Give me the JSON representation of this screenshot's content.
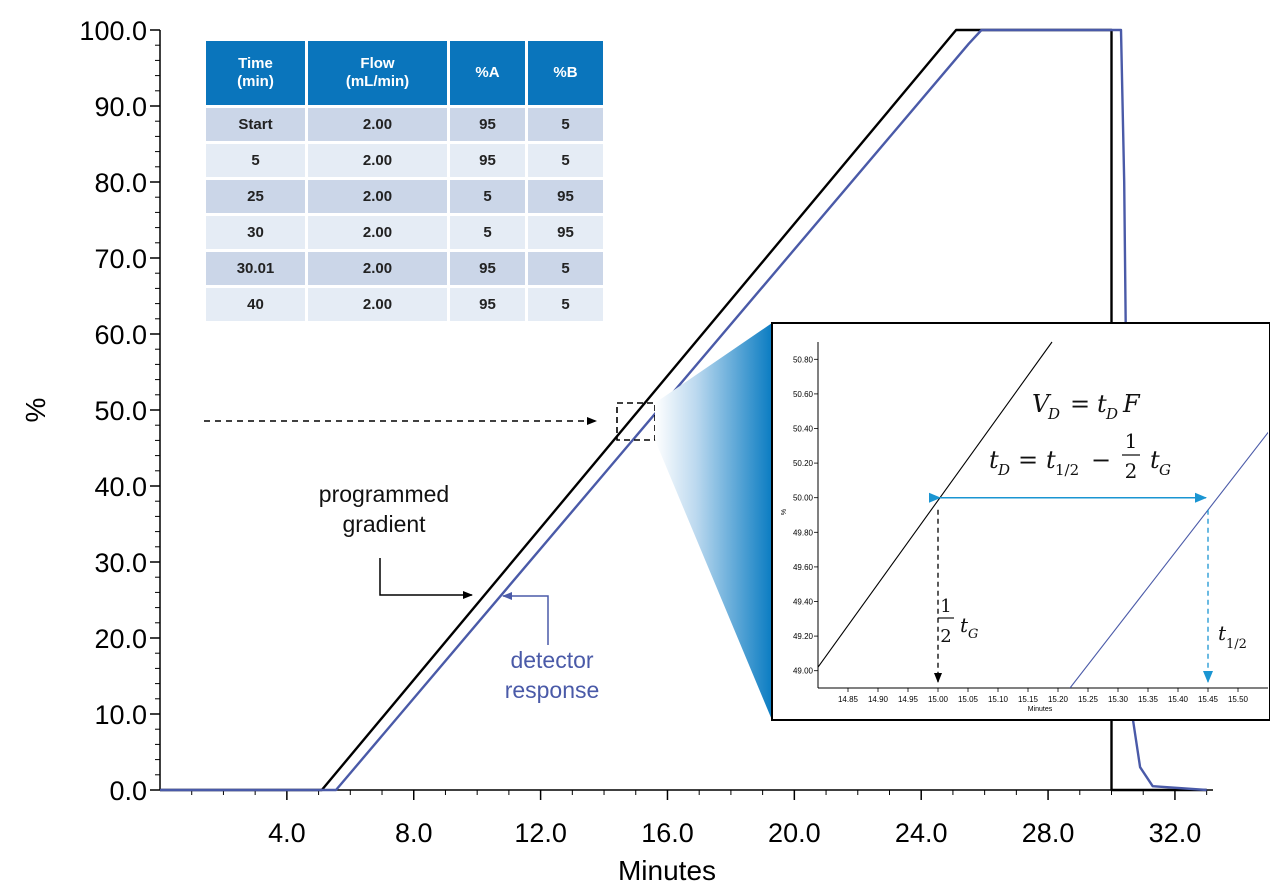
{
  "chart_data": [
    {
      "type": "line",
      "xlabel": "Minutes",
      "ylabel": "%",
      "xlim": [
        0,
        33.2
      ],
      "ylim": [
        0,
        100
      ],
      "x_ticks": [
        "4.0",
        "8.0",
        "12.0",
        "16.0",
        "20.0",
        "24.0",
        "28.0",
        "32.0"
      ],
      "y_ticks": [
        "0.0",
        "10.0",
        "20.0",
        "30.0",
        "40.0",
        "50.0",
        "60.0",
        "70.0",
        "80.0",
        "90.0",
        "100.0"
      ],
      "series": [
        {
          "label": "programmed gradient",
          "color": "#000000",
          "points": [
            [
              0,
              0
            ],
            [
              5.1,
              0
            ],
            [
              25.1,
              100
            ],
            [
              30.0,
              100
            ],
            [
              30.0,
              0
            ],
            [
              33.0,
              0
            ]
          ]
        },
        {
          "label": "detector response",
          "color": "#4a5aa8",
          "points": [
            [
              0,
              0
            ],
            [
              5.55,
              0
            ],
            [
              25.5,
              98.2
            ],
            [
              25.9,
              100
            ],
            [
              30.3,
              100
            ],
            [
              30.4,
              80
            ],
            [
              30.5,
              40
            ],
            [
              30.65,
              10
            ],
            [
              30.9,
              3
            ],
            [
              31.3,
              0.5
            ],
            [
              33.0,
              0
            ]
          ]
        }
      ],
      "annotations": {
        "programmed": [
          "programmed",
          "gradient"
        ],
        "detector": [
          "detector",
          "response"
        ]
      },
      "grid": false
    },
    {
      "type": "line",
      "xlabel": "Minutes",
      "ylabel": "%",
      "xlim": [
        14.8,
        15.55
      ],
      "ylim": [
        48.9,
        50.9
      ],
      "x_ticks": [
        "14.85",
        "14.90",
        "14.95",
        "15.00",
        "15.05",
        "15.10",
        "15.15",
        "15.20",
        "15.25",
        "15.30",
        "15.35",
        "15.40",
        "15.45",
        "15.50"
      ],
      "y_ticks": [
        "49.00",
        "49.20",
        "49.40",
        "49.60",
        "49.80",
        "50.00",
        "50.20",
        "50.40",
        "50.60",
        "50.80"
      ],
      "series": [
        {
          "label": "programmed gradient",
          "color": "#000000",
          "points": [
            [
              14.8,
              49.02
            ],
            [
              15.19,
              50.9
            ]
          ]
        },
        {
          "label": "detector response",
          "color": "#4a5aa8",
          "points": [
            [
              15.22,
              48.9
            ],
            [
              15.6,
              50.6
            ]
          ]
        }
      ],
      "annotations": {
        "eq1": "V_D = t_D F",
        "eq2": "t_D = t_1/2 − ½ t_G",
        "half_tg_x": 15.0,
        "t_half_x": 15.45,
        "arrow_y": 50.0
      },
      "grid": false
    }
  ],
  "table": {
    "headers": [
      [
        "Time",
        "(min)"
      ],
      [
        "Flow",
        "(mL/min)"
      ],
      [
        "%A"
      ],
      [
        "%B"
      ]
    ],
    "rows": [
      [
        "Start",
        "2.00",
        "95",
        "5"
      ],
      [
        "5",
        "2.00",
        "95",
        "5"
      ],
      [
        "25",
        "2.00",
        "5",
        "95"
      ],
      [
        "30",
        "2.00",
        "5",
        "95"
      ],
      [
        "30.01",
        "2.00",
        "95",
        "5"
      ],
      [
        "40",
        "2.00",
        "95",
        "5"
      ]
    ]
  }
}
